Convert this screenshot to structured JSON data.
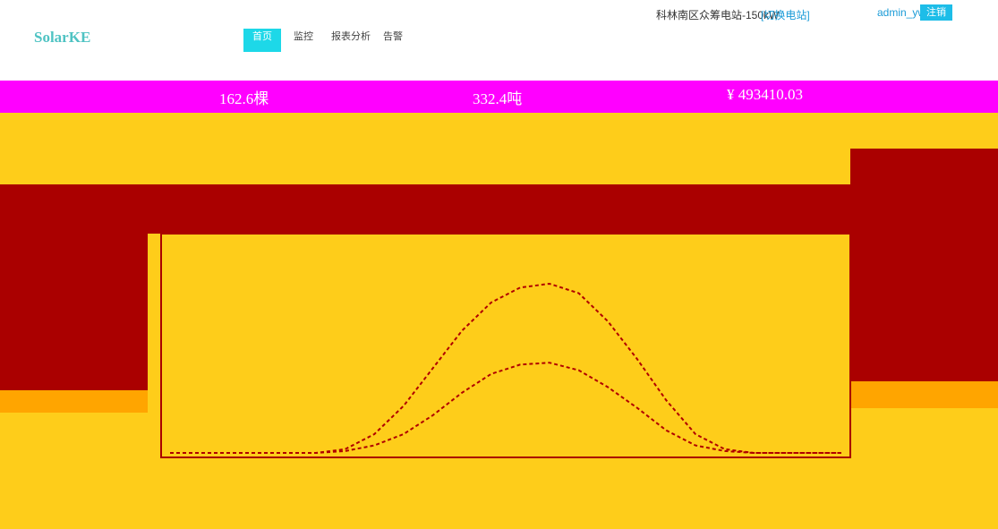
{
  "header": {
    "logo": "SolarKE",
    "nav": [
      "首页",
      "监控",
      "报表分析",
      "告警"
    ],
    "station": "科林南区众筹电站-150kW",
    "switch": "[切换电站]",
    "user": "admin_yw",
    "logout": "注销"
  },
  "stats": [
    "162.6棵",
    "332.4吨",
    "¥ 493410.03"
  ],
  "power_chart": {
    "type": "line",
    "categories": [
      null,
      null,
      null,
      null,
      null,
      null,
      null,
      null,
      null,
      null,
      null,
      null,
      null,
      null,
      null,
      null,
      null,
      null,
      null,
      null,
      null,
      null,
      null,
      null
    ],
    "ylim": [
      0,
      100
    ],
    "series": [
      {
        "color": "#b00000",
        "values": [
          0,
          0,
          0,
          0,
          0,
          0,
          2,
          10,
          25,
          45,
          65,
          80,
          88,
          90,
          85,
          70,
          50,
          28,
          10,
          2,
          0,
          0,
          0,
          0
        ]
      },
      {
        "color": "#b00000",
        "values": [
          0,
          0,
          0,
          0,
          0,
          0,
          1,
          4,
          10,
          20,
          32,
          42,
          47,
          48,
          44,
          35,
          24,
          12,
          4,
          1,
          0,
          0,
          0,
          0
        ]
      }
    ]
  }
}
